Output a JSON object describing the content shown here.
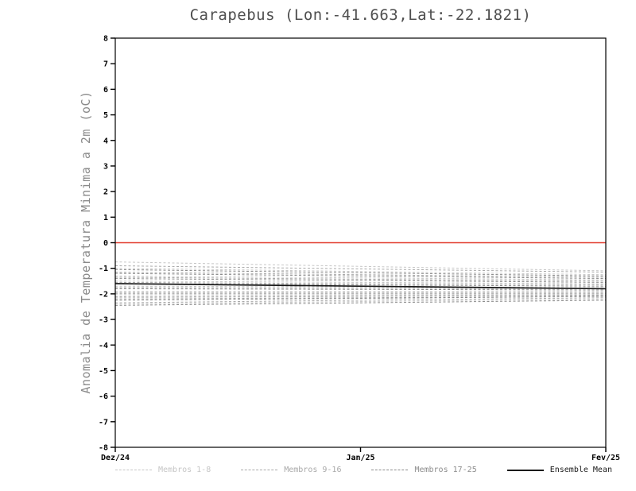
{
  "chart_data": {
    "type": "line",
    "title": "Carapebus (Lon:-41.663,Lat:-22.1821)",
    "ylabel": "Anomalia de Temperatura Minima a 2m (oC)",
    "ylim": [
      -8,
      8
    ],
    "ytick_step": 1,
    "x_ticks": [
      "Dez/24",
      "Jan/25",
      "Fev/25"
    ],
    "grid": false,
    "legend_position": "bottom",
    "zero_line": {
      "y": 0,
      "color": "#e23b2e"
    },
    "series": [
      {
        "name": "Membros 1-8",
        "color": "#c6c6c6",
        "style": "dashed",
        "members": [
          [
            -0.75,
            -1.1
          ],
          [
            -1.0,
            -1.25
          ],
          [
            -1.3,
            -1.45
          ],
          [
            -1.5,
            -1.6
          ],
          [
            -1.7,
            -1.75
          ],
          [
            -1.9,
            -1.9
          ],
          [
            -2.15,
            -2.05
          ],
          [
            -2.4,
            -2.2
          ]
        ]
      },
      {
        "name": "Membros 9-16",
        "color": "#a9a9a9",
        "style": "dashed",
        "members": [
          [
            -0.9,
            -1.15
          ],
          [
            -1.15,
            -1.35
          ],
          [
            -1.35,
            -1.5
          ],
          [
            -1.55,
            -1.65
          ],
          [
            -1.75,
            -1.8
          ],
          [
            -1.95,
            -1.95
          ],
          [
            -2.2,
            -2.1
          ],
          [
            -2.35,
            -2.15
          ]
        ]
      },
      {
        "name": "Membros 17-25",
        "color": "#8c8c8c",
        "style": "dashed",
        "members": [
          [
            -1.05,
            -1.3
          ],
          [
            -1.2,
            -1.4
          ],
          [
            -1.4,
            -1.55
          ],
          [
            -1.6,
            -1.7
          ],
          [
            -1.8,
            -1.85
          ],
          [
            -2.0,
            -2.0
          ],
          [
            -2.1,
            -2.05
          ],
          [
            -2.25,
            -2.1
          ],
          [
            -2.45,
            -2.25
          ]
        ]
      }
    ],
    "ensemble_mean": {
      "name": "Ensemble Mean",
      "color": "#1a1a1a",
      "style": "solid",
      "values": [
        -1.6,
        -1.8
      ]
    }
  }
}
